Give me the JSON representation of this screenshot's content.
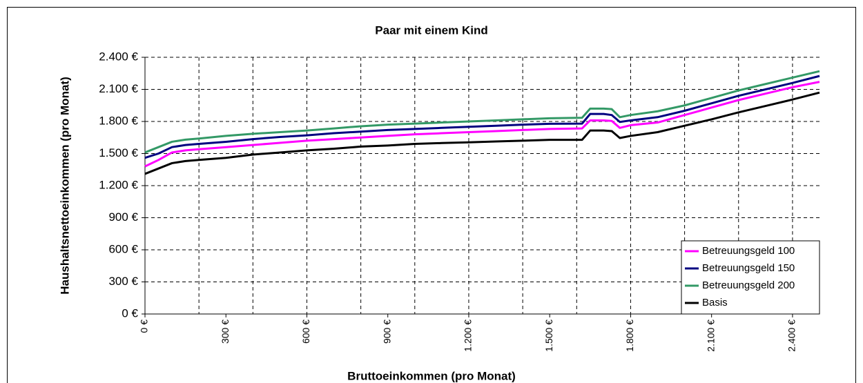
{
  "chart_data": {
    "type": "line",
    "title": "Paar mit einem Kind",
    "x_label": "Bruttoeinkommen (pro Monat)",
    "y_label": "Haushaltsnettoeinkommen (pro Monat)",
    "x": [
      0,
      50,
      100,
      150,
      200,
      300,
      400,
      500,
      600,
      700,
      800,
      900,
      1000,
      1100,
      1200,
      1300,
      1400,
      1500,
      1620,
      1650,
      1700,
      1730,
      1760,
      1800,
      1900,
      2000,
      2100,
      2200,
      2300,
      2400,
      2500
    ],
    "series": [
      {
        "name": "Betreuungsgeld 100",
        "color": "#ff00ff",
        "values": [
          1380,
          1440,
          1510,
          1530,
          1540,
          1560,
          1580,
          1600,
          1620,
          1635,
          1650,
          1665,
          1680,
          1690,
          1700,
          1710,
          1720,
          1730,
          1735,
          1810,
          1810,
          1805,
          1740,
          1765,
          1790,
          1860,
          1930,
          2000,
          2060,
          2120,
          2170
        ]
      },
      {
        "name": "Betreuungsgeld 150",
        "color": "#000080",
        "values": [
          1460,
          1500,
          1560,
          1580,
          1590,
          1610,
          1635,
          1655,
          1670,
          1690,
          1705,
          1720,
          1730,
          1740,
          1750,
          1760,
          1770,
          1778,
          1780,
          1870,
          1870,
          1860,
          1795,
          1810,
          1840,
          1900,
          1970,
          2040,
          2100,
          2160,
          2225
        ]
      },
      {
        "name": "Betreuungsgeld 200",
        "color": "#339966",
        "values": [
          1510,
          1560,
          1610,
          1630,
          1640,
          1665,
          1685,
          1700,
          1715,
          1735,
          1755,
          1770,
          1780,
          1790,
          1800,
          1810,
          1820,
          1830,
          1835,
          1920,
          1920,
          1915,
          1840,
          1860,
          1895,
          1950,
          2020,
          2090,
          2150,
          2210,
          2270
        ]
      },
      {
        "name": "Basis",
        "color": "#000000",
        "values": [
          1310,
          1360,
          1410,
          1430,
          1440,
          1460,
          1490,
          1510,
          1530,
          1545,
          1565,
          1575,
          1590,
          1598,
          1605,
          1613,
          1620,
          1628,
          1628,
          1715,
          1715,
          1710,
          1645,
          1665,
          1700,
          1760,
          1820,
          1885,
          1945,
          2005,
          2070
        ]
      }
    ],
    "xlim": [
      0,
      2500
    ],
    "ylim": [
      0,
      2400
    ],
    "xticks": [
      {
        "value": 0,
        "label": "0 €"
      },
      {
        "value": 300,
        "label": "300 €"
      },
      {
        "value": 600,
        "label": "600 €"
      },
      {
        "value": 900,
        "label": "900 €"
      },
      {
        "value": 1200,
        "label": "1.200 €"
      },
      {
        "value": 1500,
        "label": "1.500 €"
      },
      {
        "value": 1800,
        "label": "1.800 €"
      },
      {
        "value": 2100,
        "label": "2.100 €"
      },
      {
        "value": 2400,
        "label": "2.400 €"
      }
    ],
    "xgrid": [
      200,
      400,
      600,
      800,
      1000,
      1200,
      1400,
      1600,
      1800,
      2000,
      2200,
      2400
    ],
    "yticks": [
      {
        "value": 0,
        "label": "0 €"
      },
      {
        "value": 300,
        "label": "300 €"
      },
      {
        "value": 600,
        "label": "600 €"
      },
      {
        "value": 900,
        "label": "900 €"
      },
      {
        "value": 1200,
        "label": "1.200 €"
      },
      {
        "value": 1500,
        "label": "1.500 €"
      },
      {
        "value": 1800,
        "label": "1.800 €"
      },
      {
        "value": 2100,
        "label": "2.100 €"
      },
      {
        "value": 2400,
        "label": "2.400 €"
      }
    ],
    "grid": true,
    "legend": "lower right"
  }
}
